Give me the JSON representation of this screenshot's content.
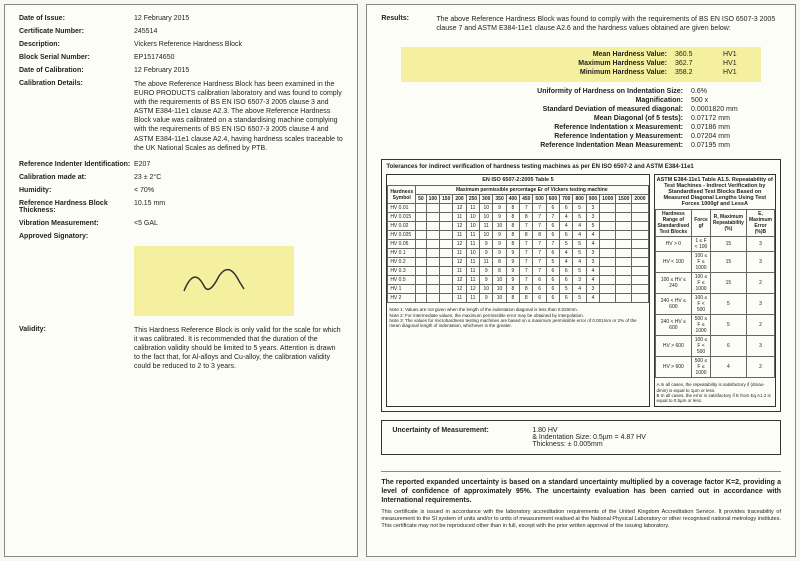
{
  "left": {
    "issue_label": "Date of Issue:",
    "issue_value": "12 February 2015",
    "cert_label": "Certificate Number:",
    "cert_value": "245514",
    "desc_label": "Description:",
    "desc_value": "Vickers Reference Hardness Block",
    "serial_label": "Block Serial Number:",
    "serial_value": "EP15174650",
    "calib_date_label": "Date of Calibration:",
    "calib_date_value": "12 February 2015",
    "calib_det_label": "Calibration Details:",
    "calib_det_value": "The above Reference Hardness Block has been examined in the EURO PRODUCTS calibration laboratory and was found to comply with the requirements of BS EN ISO 6507-3 2005 clause 3 and ASTM E384-11e1 clause A2.3. The above Reference Hardness Block value was calibrated on a standardising machine complying with the requirements of BS EN ISO 6507-3 2005 clause 4 and ASTM E384-11e1 clause A2.4, having hardness scales traceable to the UK National Scales as defined by PTB.",
    "indenter_label": "Reference Indenter Identification:",
    "indenter_value": "E207",
    "calibat_label": "Calibration made at:",
    "calibat_value": "23 ± 2°C",
    "humidity_label": "Humidity:",
    "humidity_value": "< 70%",
    "thick_label": "Reference Hardness Block Thickness:",
    "thick_value": "10.15 mm",
    "vib_label": "Vibration Measurement:",
    "vib_value": "<5 GAL",
    "sig_label": "Approved Signatory:",
    "validity_label": "Validity:",
    "validity_value": "This Hardness Reference Block is only valid for the scale for which it was calibrated. It is recommended that the duration of the calibration validity should be limited to 5 years. Attention is drawn to the fact that, for Al-alloys and Cu-alloy, the calibration validity could be reduced to 2 to 3 years."
  },
  "right": {
    "results_label": "Results:",
    "results_text": "The above Reference Hardness Block was found to comply with the requirements of BS EN ISO 6507-3 2005 clause 7 and ASTM E384-11e1 clause A2.6 and the hardness values obtained are given below:",
    "mean_label": "Mean Hardness Value:",
    "mean_v": "360.5",
    "mean_u": "HV1",
    "max_label": "Maximum Hardness Value:",
    "max_v": "362.7",
    "max_u": "HV1",
    "min_label": "Minimum Hardness Value:",
    "min_v": "358.2",
    "min_u": "HV1",
    "unif_label": "Uniformity of Hardness on Indentation Size:",
    "unif_v": "0.6%",
    "mag_label": "Magnification:",
    "mag_v": "500 x",
    "sd_label": "Standard Deviation of measured diagonal:",
    "sd_v": "0.0001820 mm",
    "md_label": "Mean Diagonal (of 5 tests):",
    "md_v": "0.07172 mm",
    "rx_label": "Reference Indentation x Measurement:",
    "rx_v": "0.07186 mm",
    "ry_label": "Reference Indentation y Measurement:",
    "ry_v": "0.07204 mm",
    "rm_label": "Reference Indentation Mean Measurement:",
    "rm_v": "0.07195 mm",
    "tol_title": "Tolerances for indirect verification of hardness testing machines as per EN ISO 6507-2 and ASTM E384-11e1",
    "tol_left_title": "EN ISO 6507-2:2005 Table 5",
    "tol_left_sub": "Maximum permissible percentage Er of Vickers testing machine",
    "tol_left_rowhdr": "Hardness Symbol",
    "tol_left_rows": [
      "HV 0.01",
      "HV 0.015",
      "HV 0.02",
      "HV 0.025",
      "HV 0.05",
      "HV 0.1",
      "HV 0.2",
      "HV 0.3",
      "HV 0.5",
      "HV 1",
      "HV 2"
    ],
    "tol_left_note": "Note 1: Values are not given when the length of the indentation diagonal is less than 0.020mm.\nNote 2: For intermediate values, the maximum permissible error may be obtained by interpolation.\nNote 3: The values for microhardness testing machines are based on a maximum permissible error of 0.001mm or 2% of the mean diagonal length of indentation, whichever is the greater.",
    "tol_right_title": "ASTM E384-11e1 Table A1.5. Repeatability of Test Machines - Indirect Verification by Standardised Test Blocks Based on Measured Diagonal Lengths Using Test Forces 1000gf and LessA",
    "tol_right_hdrs": [
      "Hardness Range of Standardised Test Blocks",
      "Force gf",
      "R, Maximum Repeatability (%)",
      "E, Maximum Error (%)B"
    ],
    "tol_right_rows": [
      [
        "HV > 0",
        "1 ≤ F < 100",
        "15",
        "3"
      ],
      [
        "HV < 100",
        "100 ≤ F ≤ 1000",
        "15",
        "3"
      ],
      [
        "100 ≤ HV ≤ 240",
        "100 ≤ F ≤ 1000",
        "15",
        "2"
      ],
      [
        "240 < HV ≤ 600",
        "100 ≤ F < 500",
        "5",
        "3"
      ],
      [
        "240 < HV ≤ 600",
        "500 ≤ F ≤ 1000",
        "5",
        "2"
      ],
      [
        "HV > 600",
        "100 ≤ F < 500",
        "6",
        "3"
      ],
      [
        "HV > 600",
        "500 ≤ F ≤ 1000",
        "4",
        "2"
      ]
    ],
    "tol_right_note": "A In all cases, the repeatability is satisfactory if (dmax-dmin) is equal to 1μm or less.\nB In all cases, the error is satisfactory if E from Eq A1.2 is equal to 0.5μm or less.",
    "unc_label": "Uncertainty of Measurement:",
    "unc_v1": "1.80 HV",
    "unc_v2": "& Indentation Size: 0.5µm = 4.87 HV",
    "unc_v3": "Thickness: ± 0.005mm",
    "footer_bold": "The reported expanded uncertainty is based on a standard uncertainty multiplied by a coverage factor K=2, providing a level of confidence of approximately 95%. The uncertainty evaluation has been carried out in accordance with International requirements.",
    "footer_small": "This certificate is issued in accordance with the laboratory accreditation requirements of the United Kingdom Accreditation Service. It provides traceability of measurement to the SI system of units and/or to units of measurement realised at the National Physical Laboratory or other recognised national metrology institutes. This certificate may not be reproduced other than in full, except with the prior written approval of the issuing laboratory."
  }
}
